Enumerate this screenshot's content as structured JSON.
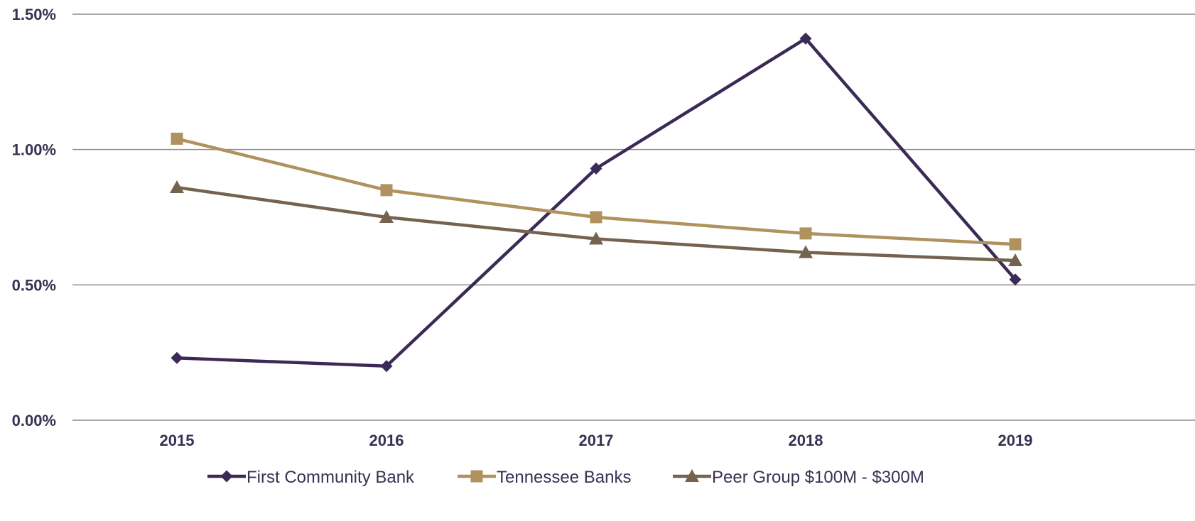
{
  "chart_data": {
    "type": "line",
    "title": "",
    "xlabel": "",
    "ylabel": "",
    "categories": [
      "2015",
      "2016",
      "2017",
      "2018",
      "2019"
    ],
    "y_ticks": [
      "0.00%",
      "0.50%",
      "1.00%",
      "1.50%"
    ],
    "y_tick_values": [
      0,
      0.5,
      1.0,
      1.5
    ],
    "ylim": [
      0,
      1.5
    ],
    "grid": "horizontal",
    "legend_position": "bottom",
    "series": [
      {
        "name": "First Community Bank",
        "values": [
          0.23,
          0.2,
          0.93,
          1.41,
          0.52
        ],
        "color": "#3b2a55",
        "marker": "diamond"
      },
      {
        "name": "Tennessee Banks",
        "values": [
          1.04,
          0.85,
          0.75,
          0.69,
          0.65
        ],
        "color": "#b0925f",
        "marker": "square"
      },
      {
        "name": "Peer Group $100M - $300M",
        "values": [
          0.86,
          0.75,
          0.67,
          0.62,
          0.59
        ],
        "color": "#76634f",
        "marker": "triangle"
      }
    ]
  }
}
